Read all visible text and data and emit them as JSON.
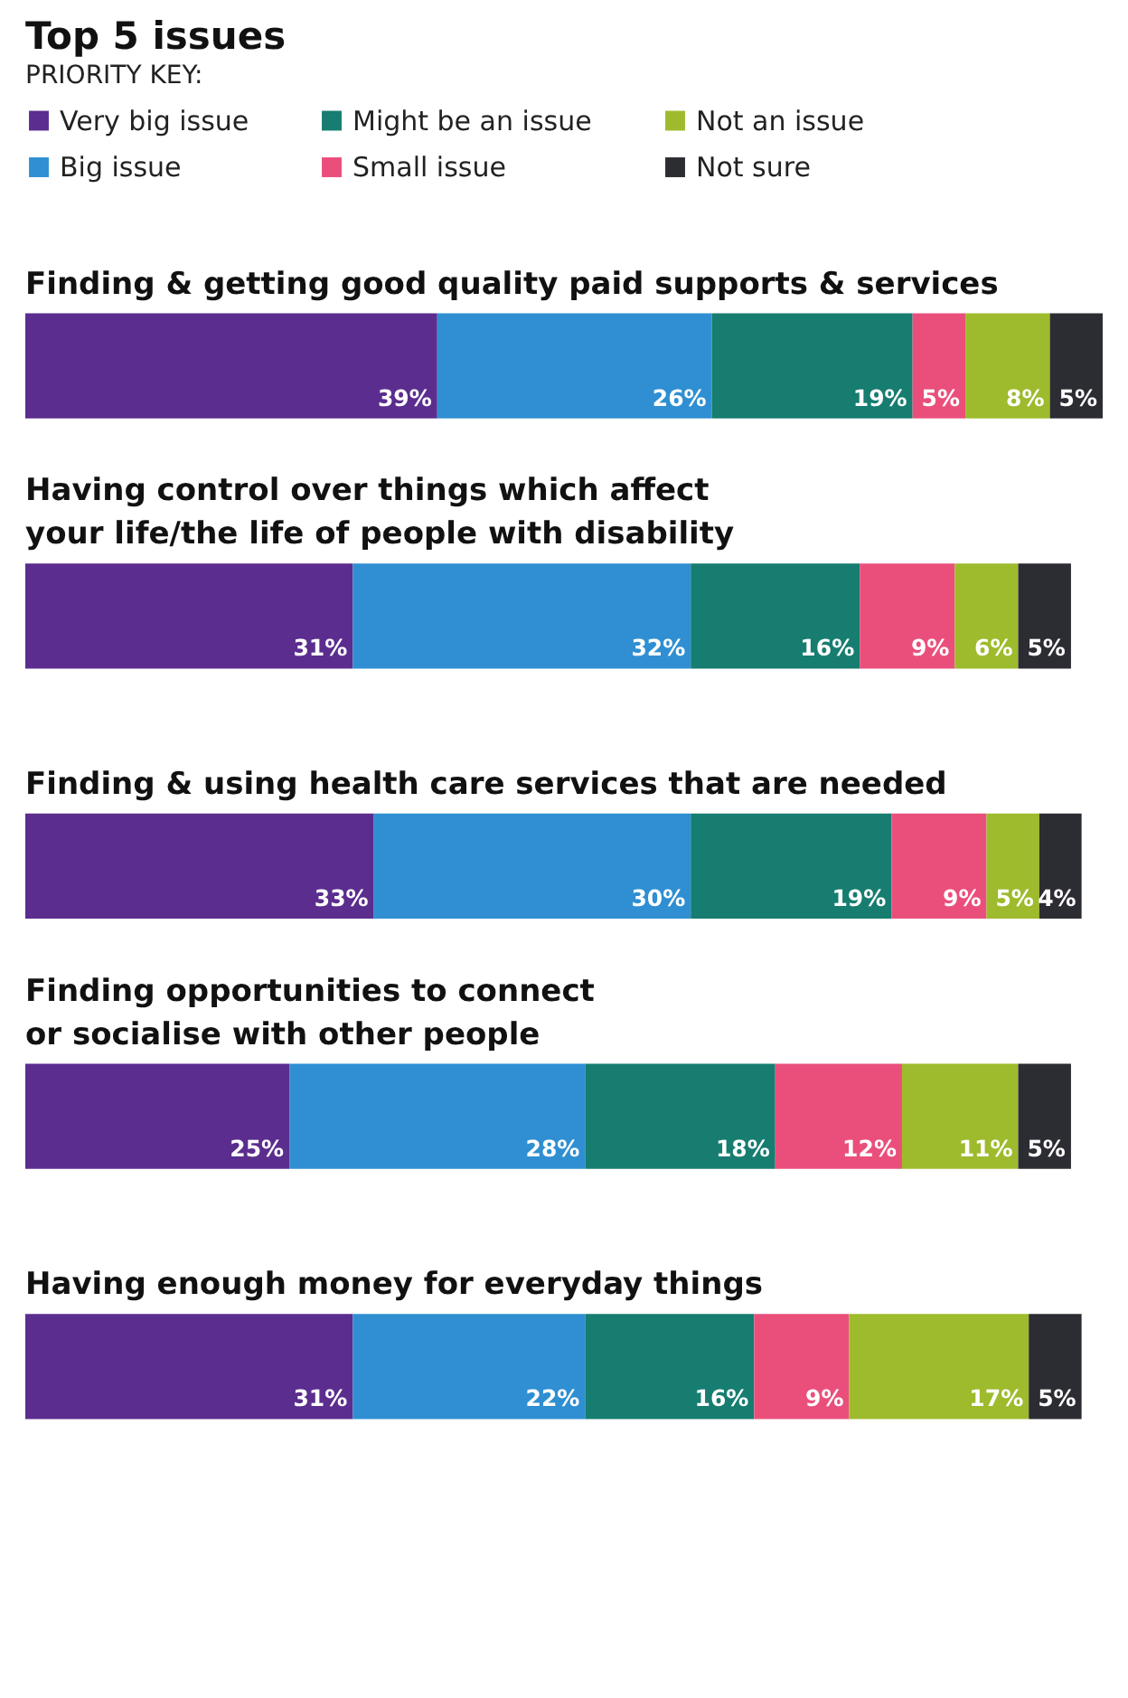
{
  "chart_data": {
    "type": "bar",
    "orientation": "horizontal",
    "stacked": true,
    "title": "Top 5 issues",
    "legend_title": "PRIORITY KEY:",
    "legend": "top",
    "categories": [
      "Finding & getting good quality paid supports & services",
      "Having control over things which affect\nyour life/the life of people with disability",
      "Finding & using health care services that are needed",
      "Finding opportunities to connect\nor socialise with other people",
      "Having enough money for everyday things"
    ],
    "series": [
      {
        "name": "Very big issue",
        "color": "#5b2d8e",
        "values": [
          39,
          31,
          33,
          25,
          31
        ],
        "value_labels": [
          "39%",
          "31%",
          "33%",
          "25%",
          "31%"
        ]
      },
      {
        "name": "Big  issue",
        "color": "#2f8fd2",
        "values": [
          26,
          32,
          30,
          28,
          22
        ],
        "value_labels": [
          "26%",
          "32%",
          "30%",
          "28%",
          "22%"
        ]
      },
      {
        "name": "Might be an issue",
        "color": "#167d70",
        "values": [
          19,
          16,
          19,
          18,
          16
        ],
        "value_labels": [
          "19%",
          "16%",
          "19%",
          "18%",
          "16%"
        ]
      },
      {
        "name": "Small issue",
        "color": "#ea4f7c",
        "values": [
          5,
          9,
          9,
          12,
          9
        ],
        "value_labels": [
          "5%",
          "9%",
          "9%",
          "12%",
          "9%"
        ]
      },
      {
        "name": "Not an issue",
        "color": "#9dbb2c",
        "values": [
          8,
          6,
          5,
          11,
          17
        ],
        "value_labels": [
          "8%",
          "6%",
          "5%",
          "11%",
          "17%"
        ]
      },
      {
        "name": "Not sure",
        "color": "#2c2c33",
        "values": [
          5,
          5,
          4,
          5,
          5
        ],
        "value_labels": [
          "5%",
          "5%",
          "4%",
          "5%",
          "5%"
        ]
      }
    ]
  }
}
